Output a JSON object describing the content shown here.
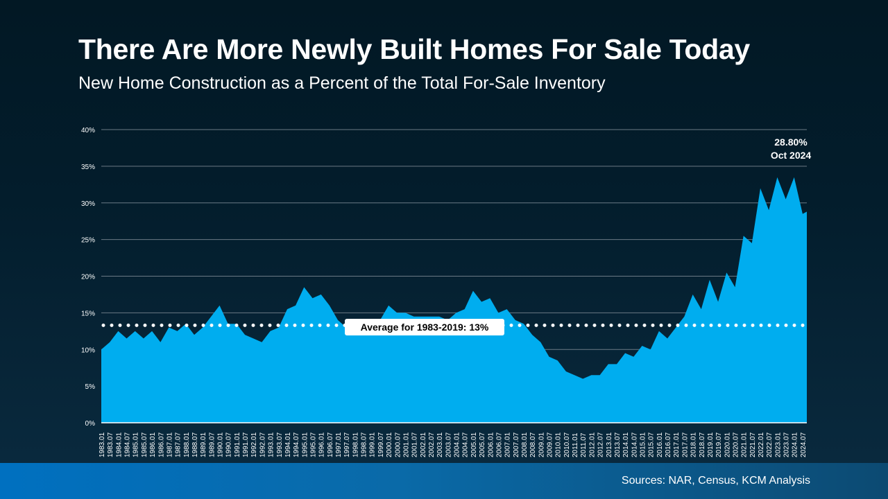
{
  "header": {
    "title": "There Are More Newly Built Homes For Sale Today",
    "subtitle": "New Home Construction as a Percent of the Total For-Sale Inventory"
  },
  "footer": {
    "source": "Sources: NAR, Census, KCM Analysis"
  },
  "colors": {
    "fill": "#00adef",
    "grid": "#6b7a85",
    "average_line": "#ffffff"
  },
  "chart_data": {
    "type": "area",
    "title": "New Home Construction as a Percent of the Total For-Sale Inventory",
    "ylim": [
      0,
      40
    ],
    "y_ticks": [
      "0%",
      "5%",
      "10%",
      "15%",
      "20%",
      "25%",
      "30%",
      "35%",
      "40%"
    ],
    "grid": true,
    "x_ticks": [
      "1983.01",
      "1983.07",
      "1984.01",
      "1984.07",
      "1985.01",
      "1985.07",
      "1986.01",
      "1986.07",
      "1987.01",
      "1987.07",
      "1988.01",
      "1988.07",
      "1989.01",
      "1989.07",
      "1990.01",
      "1990.07",
      "1991.01",
      "1991.07",
      "1992.01",
      "1992.07",
      "1993.01",
      "1993.07",
      "1994.01",
      "1994.07",
      "1995.01",
      "1995.07",
      "1996.01",
      "1996.07",
      "1997.01",
      "1997.07",
      "1998.01",
      "1998.07",
      "1999.01",
      "1999.07",
      "2000.01",
      "2000.07",
      "2001.01",
      "2001.07",
      "2002.01",
      "2002.07",
      "2003.01",
      "2003.07",
      "2004.01",
      "2004.07",
      "2005.01",
      "2005.07",
      "2006.01",
      "2006.07",
      "2007.01",
      "2007.07",
      "2008.01",
      "2008.07",
      "2009.01",
      "2009.07",
      "2010.01",
      "2010.07",
      "2011.01",
      "2011.07",
      "2012.01",
      "2012.07",
      "2013.01",
      "2013.07",
      "2014.01",
      "2014.07",
      "2015.01",
      "2015.07",
      "2016.01",
      "2016.07",
      "2017.01",
      "2017.07",
      "2018.01",
      "2018.07",
      "2019.01",
      "2019.07",
      "2020.01",
      "2020.07",
      "2021.01",
      "2021.07",
      "2022.01",
      "2022.07",
      "2023.01",
      "2023.07",
      "2024.01",
      "2024.07"
    ],
    "x": [
      "1983.01",
      "1983.07",
      "1984.01",
      "1984.07",
      "1985.01",
      "1985.07",
      "1986.01",
      "1986.07",
      "1987.01",
      "1987.07",
      "1988.01",
      "1988.07",
      "1989.01",
      "1989.07",
      "1990.01",
      "1990.07",
      "1991.01",
      "1991.07",
      "1992.01",
      "1992.07",
      "1993.01",
      "1993.07",
      "1994.01",
      "1994.07",
      "1995.01",
      "1995.07",
      "1996.01",
      "1996.07",
      "1997.01",
      "1997.07",
      "1998.01",
      "1998.07",
      "1999.01",
      "1999.07",
      "2000.01",
      "2000.07",
      "2001.01",
      "2001.07",
      "2002.01",
      "2002.07",
      "2003.01",
      "2003.07",
      "2004.01",
      "2004.07",
      "2005.01",
      "2005.07",
      "2006.01",
      "2006.07",
      "2007.01",
      "2007.07",
      "2008.01",
      "2008.07",
      "2009.01",
      "2009.07",
      "2010.01",
      "2010.07",
      "2011.01",
      "2011.07",
      "2012.01",
      "2012.07",
      "2013.01",
      "2013.07",
      "2014.01",
      "2014.07",
      "2015.01",
      "2015.07",
      "2016.01",
      "2016.07",
      "2017.01",
      "2017.07",
      "2018.01",
      "2018.07",
      "2019.01",
      "2019.07",
      "2020.01",
      "2020.07",
      "2021.01",
      "2021.07",
      "2022.01",
      "2022.07",
      "2023.01",
      "2023.07",
      "2024.01",
      "2024.07",
      "2024.10"
    ],
    "values": [
      10,
      11,
      12.5,
      11.5,
      12.5,
      11.5,
      12.5,
      11,
      13,
      12.5,
      13.5,
      12,
      13,
      14.5,
      16,
      13.5,
      13.5,
      12,
      11.5,
      11,
      12.5,
      13,
      15.5,
      16,
      18.5,
      17,
      17.5,
      16,
      14,
      13,
      12,
      12.5,
      13,
      14,
      16,
      15,
      15,
      14.5,
      14.5,
      14.5,
      14.5,
      14,
      15,
      15.5,
      18,
      16.5,
      17,
      15,
      15.5,
      14,
      13.5,
      12,
      11,
      9,
      8.5,
      7,
      6.5,
      6,
      6.5,
      6.5,
      8,
      8,
      9.5,
      9,
      10.5,
      10,
      12.5,
      11.5,
      13,
      14.5,
      17.5,
      15.5,
      19.5,
      16.5,
      20.5,
      18.5,
      25.5,
      24.5,
      32,
      29,
      33.5,
      30.5,
      33.5,
      28.5,
      28.8
    ],
    "average": {
      "value": 13.3,
      "label": "Average for 1983-2019: 13%"
    },
    "annotation": {
      "value": "28.80%",
      "date": "Oct 2024"
    }
  }
}
